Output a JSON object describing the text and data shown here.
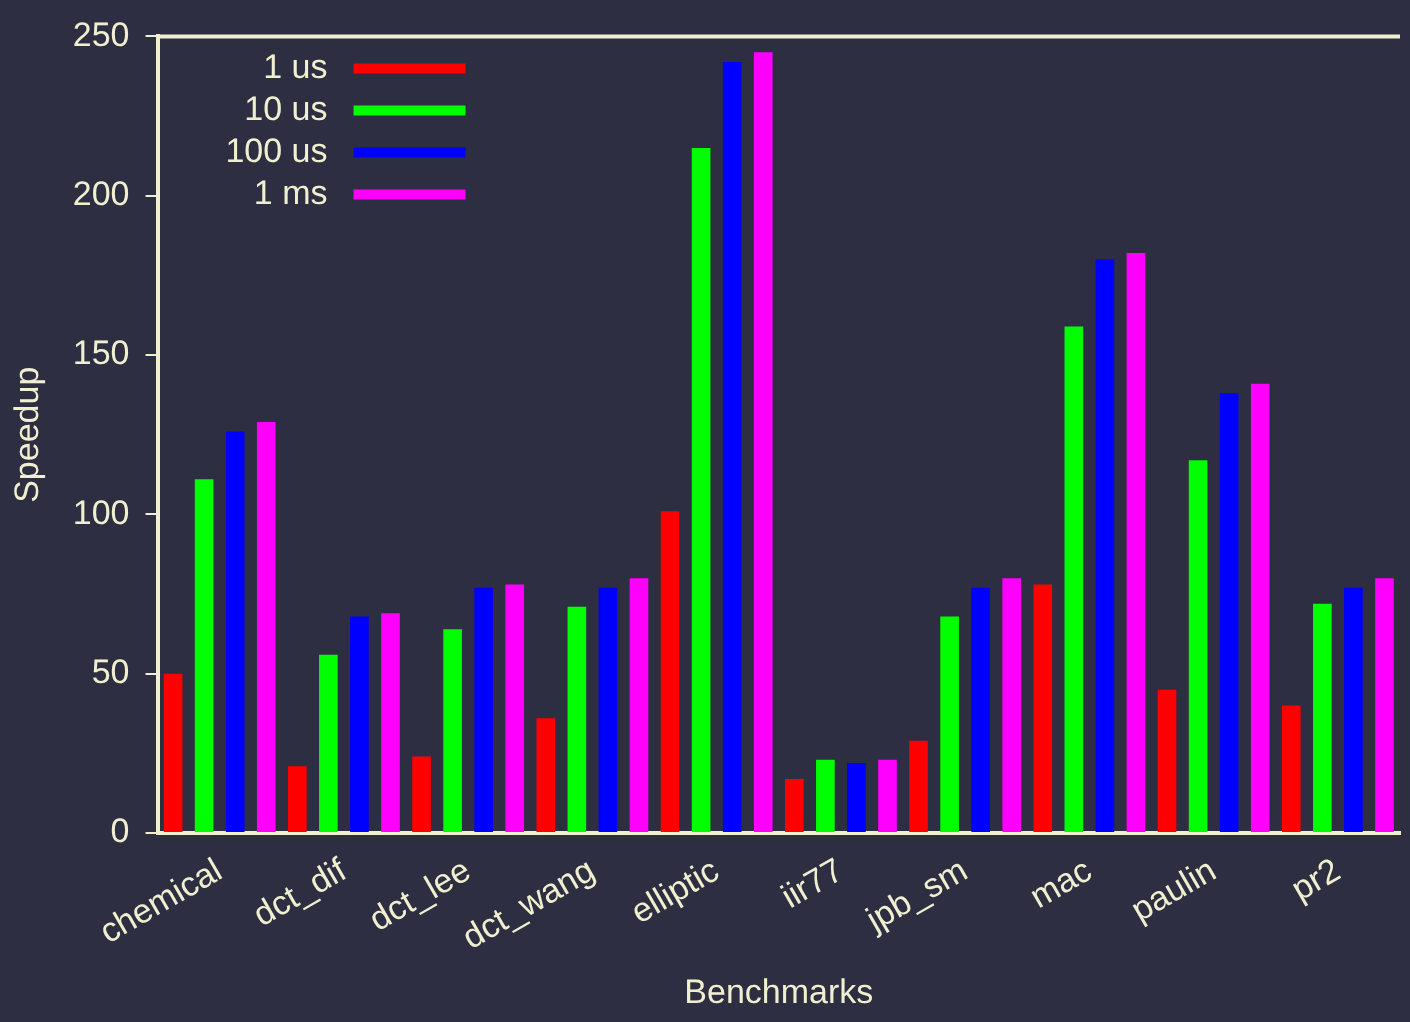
{
  "chart_data": {
    "type": "bar",
    "xlabel": "Benchmarks",
    "ylabel": "Speedup",
    "categories": [
      "chemical",
      "dct_dif",
      "dct_lee",
      "dct_wang",
      "elliptic",
      "iir77",
      "jpb_sm",
      "mac",
      "paulin",
      "pr2"
    ],
    "series": [
      {
        "name": "1 us",
        "color": "#ff0000",
        "values": [
          50,
          21,
          24,
          36,
          101,
          17,
          29,
          78,
          45,
          40
        ]
      },
      {
        "name": "10 us",
        "color": "#00ff00",
        "values": [
          111,
          56,
          64,
          71,
          215,
          23,
          68,
          159,
          117,
          72
        ]
      },
      {
        "name": "100 us",
        "color": "#0000ff",
        "values": [
          126,
          68,
          77,
          77,
          242,
          22,
          77,
          180,
          138,
          77
        ]
      },
      {
        "name": "1 ms",
        "color": "#ff00ff",
        "values": [
          129,
          69,
          78,
          80,
          245,
          23,
          80,
          182,
          141,
          80
        ]
      }
    ],
    "ylim": [
      0,
      250
    ],
    "yticks": [
      0,
      50,
      100,
      150,
      200,
      250
    ],
    "grid": false,
    "legend": "top left"
  }
}
